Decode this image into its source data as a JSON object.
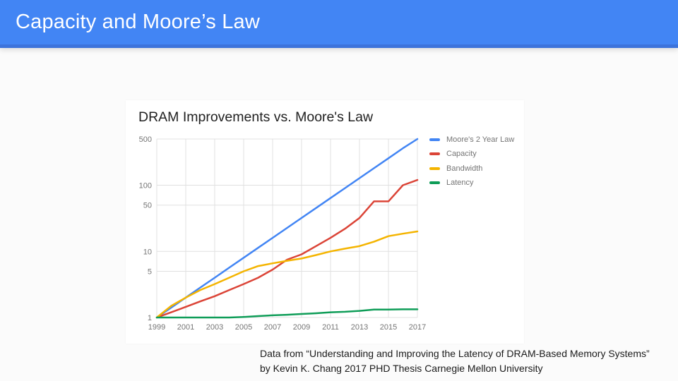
{
  "slide": {
    "header": {
      "title": "Capacity and Moore’s Law"
    },
    "footer": {
      "line1": "Data from “Understanding and Improving the Latency of DRAM-Based Memory Systems”",
      "line2": "by Kevin K. Chang 2017 PHD Thesis Carnegie Mellon University"
    }
  },
  "colors": {
    "header_bg": "#4285F4",
    "header_edge": "#3C73DB",
    "header_title_text": "#FFFFFF",
    "page_bg": "#FBFBFB",
    "card_bg": "#FFFFFF",
    "grid": "#E0E0E0",
    "tick_text": "#757575",
    "legend_text": "#757575",
    "chart_title_text": "#212121",
    "footer_text": "#1A1A1A",
    "series_blue": "#4285F4",
    "series_red": "#DB4437",
    "series_yellow": "#F4B400",
    "series_green": "#0F9D58"
  },
  "chart_data": {
    "type": "line",
    "title": "DRAM Improvements vs. Moore's Law",
    "x": [
      1999,
      2000,
      2001,
      2002,
      2003,
      2004,
      2005,
      2006,
      2007,
      2008,
      2009,
      2010,
      2011,
      2012,
      2013,
      2014,
      2015,
      2016,
      2017
    ],
    "x_tick_years": [
      1999,
      2001,
      2003,
      2005,
      2007,
      2009,
      2011,
      2013,
      2015,
      2017
    ],
    "x_tick_labels": [
      "1999",
      "2001",
      "2003",
      "2005",
      "2007",
      "2009",
      "2011",
      "2013",
      "2015",
      "2017"
    ],
    "y_scale": "log",
    "y_ticks": [
      1,
      5,
      10,
      50,
      100,
      500
    ],
    "y_tick_labels": [
      "1",
      "5",
      "10",
      "50",
      "100",
      "500"
    ],
    "xlim": [
      1999,
      2017
    ],
    "ylim": [
      1,
      500
    ],
    "grid": true,
    "legend_position": "right",
    "xlabel": "",
    "ylabel": "",
    "series": [
      {
        "name": "Moore's 2 Year Law",
        "color": "#4285F4",
        "values": [
          1,
          1.41,
          2,
          2.83,
          4,
          5.66,
          8,
          11.31,
          16,
          22.63,
          32,
          45.25,
          64,
          90.51,
          128,
          181.02,
          256,
          362.04,
          512
        ]
      },
      {
        "name": "Capacity",
        "color": "#DB4437",
        "values": [
          1,
          1.2,
          1.45,
          1.75,
          2.1,
          2.6,
          3.2,
          4,
          5.3,
          7.5,
          9,
          12,
          16,
          22,
          32,
          57,
          57,
          100,
          120
        ]
      },
      {
        "name": "Bandwidth",
        "color": "#F4B400",
        "values": [
          1,
          1.5,
          2,
          2.6,
          3.2,
          4,
          5,
          6,
          6.6,
          7.2,
          7.8,
          8.8,
          10,
          11,
          12,
          14,
          17,
          18.5,
          20
        ]
      },
      {
        "name": "Latency",
        "color": "#0F9D58",
        "values": [
          1,
          1,
          1,
          1,
          1,
          1,
          1.02,
          1.05,
          1.08,
          1.1,
          1.13,
          1.16,
          1.2,
          1.22,
          1.26,
          1.32,
          1.32,
          1.33,
          1.33
        ]
      }
    ]
  }
}
